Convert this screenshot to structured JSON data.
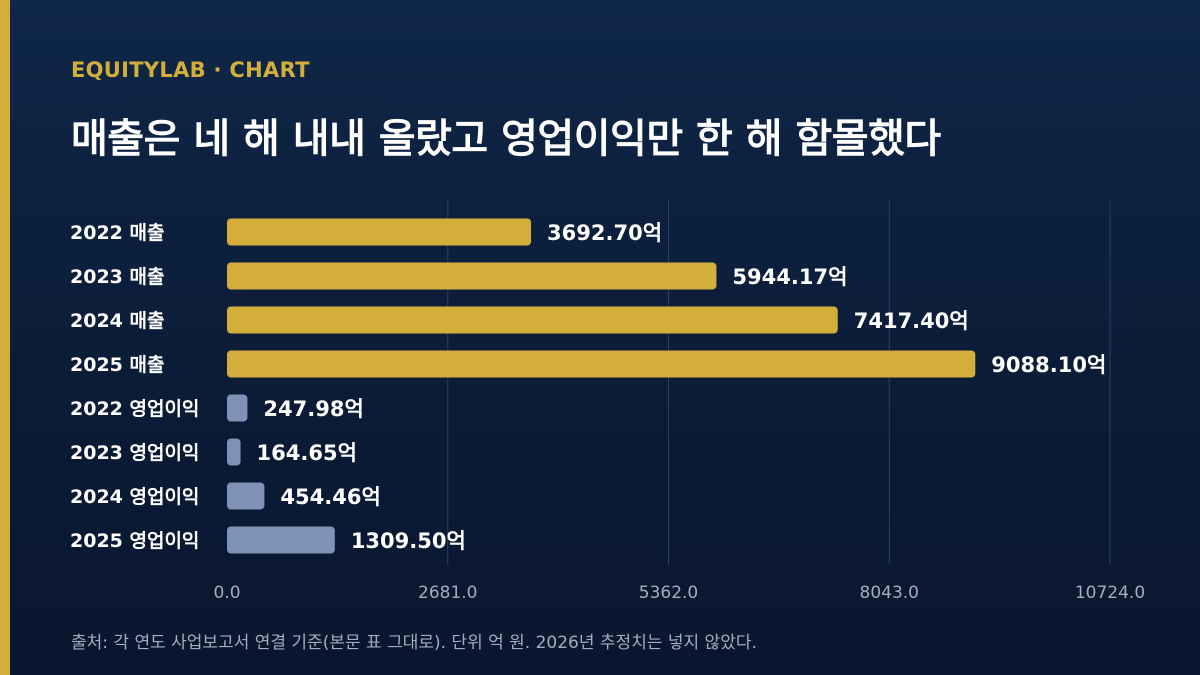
{
  "brand": "EQUITYLAB · CHART",
  "title": "매출은 네 해 내내 올랐고 영업이익만 한 해 함몰했다",
  "source": "출처: 각 연도 사업보고서 연결 기준(본문 표 그대로). 단위 억 원. 2026년 추정치는 넣지 않았다.",
  "colors": {
    "revenue": "#d4ae3b",
    "operating_income": "#7f93b6",
    "accent": "#d4ae3b",
    "grid": "#2b4061"
  },
  "chart_data": {
    "type": "bar",
    "orientation": "horizontal",
    "value_suffix": "억",
    "categories": [
      "2022 매출",
      "2023 매출",
      "2024 매출",
      "2025 매출",
      "2022 영업이익",
      "2023 영업이익",
      "2024 영업이익",
      "2025 영업이익"
    ],
    "values": [
      3692.7,
      5944.17,
      7417.4,
      9088.1,
      247.98,
      164.65,
      454.46,
      1309.5
    ],
    "value_labels": [
      "3692.70억",
      "5944.17억",
      "7417.40억",
      "9088.10억",
      "247.98억",
      "164.65억",
      "454.46억",
      "1309.50억"
    ],
    "groups": [
      "revenue",
      "revenue",
      "revenue",
      "revenue",
      "operating_income",
      "operating_income",
      "operating_income",
      "operating_income"
    ],
    "xlim": [
      0,
      10724.0
    ],
    "x_ticks": [
      0,
      2681.0,
      5362.0,
      8043.0,
      10724.0
    ],
    "x_tick_labels": [
      "0.0",
      "2681.0",
      "5362.0",
      "8043.0",
      "10724.0"
    ],
    "grid": true
  }
}
